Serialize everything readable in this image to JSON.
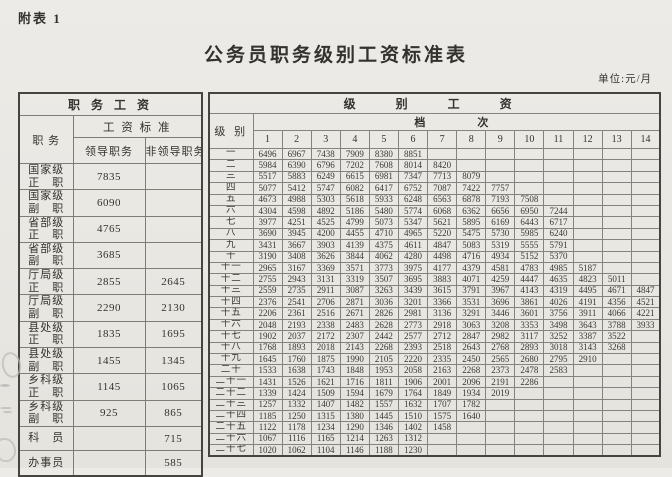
{
  "page": {
    "annex_label": "附表 1",
    "title": "公务员职务级别工资标准表",
    "unit_note": "单位:元/月"
  },
  "position_table": {
    "title": "职 务 工 资",
    "col_position": "职 务",
    "col_standard": "工 资 标 准",
    "col_leader": "领导职务",
    "col_nonleader": "非领导职务",
    "rows": [
      {
        "name": [
          "国家级",
          "正　职"
        ],
        "leader": "7835",
        "nonleader": ""
      },
      {
        "name": [
          "国家级",
          "副　职"
        ],
        "leader": "6090",
        "nonleader": ""
      },
      {
        "name": [
          "省部级",
          "正　职"
        ],
        "leader": "4765",
        "nonleader": ""
      },
      {
        "name": [
          "省部级",
          "副　职"
        ],
        "leader": "3685",
        "nonleader": ""
      },
      {
        "name": [
          "厅局级",
          "正　职"
        ],
        "leader": "2855",
        "nonleader": "2645"
      },
      {
        "name": [
          "厅局级",
          "副　职"
        ],
        "leader": "2290",
        "nonleader": "2130"
      },
      {
        "name": [
          "县处级",
          "正　职"
        ],
        "leader": "1835",
        "nonleader": "1695"
      },
      {
        "name": [
          "县处级",
          "副　职"
        ],
        "leader": "1455",
        "nonleader": "1345"
      },
      {
        "name": [
          "乡科级",
          "正　职"
        ],
        "leader": "1145",
        "nonleader": "1065"
      },
      {
        "name": [
          "乡科级",
          "副　职"
        ],
        "leader": "925",
        "nonleader": "865"
      },
      {
        "name": [
          "科　员"
        ],
        "leader": "",
        "nonleader": "715"
      },
      {
        "name": [
          "办事员"
        ],
        "leader": "",
        "nonleader": "585"
      }
    ]
  },
  "grade_table": {
    "title": "级　别　工　资",
    "col_grade": "级 别",
    "col_step": "档　　次",
    "steps": [
      "1",
      "2",
      "3",
      "4",
      "5",
      "6",
      "7",
      "8",
      "9",
      "10",
      "11",
      "12",
      "13",
      "14"
    ],
    "rows": [
      {
        "grade": "一",
        "values": [
          6496,
          6967,
          7438,
          7909,
          8380,
          8851
        ]
      },
      {
        "grade": "二",
        "values": [
          5984,
          6390,
          6796,
          7202,
          7608,
          8014,
          8420
        ]
      },
      {
        "grade": "三",
        "values": [
          5517,
          5883,
          6249,
          6615,
          6981,
          7347,
          7713,
          8079
        ]
      },
      {
        "grade": "四",
        "values": [
          5077,
          5412,
          5747,
          6082,
          6417,
          6752,
          7087,
          7422,
          7757
        ]
      },
      {
        "grade": "五",
        "values": [
          4673,
          4988,
          5303,
          5618,
          5933,
          6248,
          6563,
          6878,
          7193,
          7508
        ]
      },
      {
        "grade": "六",
        "values": [
          4304,
          4598,
          4892,
          5186,
          5480,
          5774,
          6068,
          6362,
          6656,
          6950,
          7244
        ]
      },
      {
        "grade": "七",
        "values": [
          3977,
          4251,
          4525,
          4799,
          5073,
          5347,
          5621,
          5895,
          6169,
          6443,
          6717
        ]
      },
      {
        "grade": "八",
        "values": [
          3690,
          3945,
          4200,
          4455,
          4710,
          4965,
          5220,
          5475,
          5730,
          5985,
          6240
        ]
      },
      {
        "grade": "九",
        "values": [
          3431,
          3667,
          3903,
          4139,
          4375,
          4611,
          4847,
          5083,
          5319,
          5555,
          5791
        ]
      },
      {
        "grade": "十",
        "values": [
          3190,
          3408,
          3626,
          3844,
          4062,
          4280,
          4498,
          4716,
          4934,
          5152,
          5370
        ]
      },
      {
        "grade": "十一",
        "values": [
          2965,
          3167,
          3369,
          3571,
          3773,
          3975,
          4177,
          4379,
          4581,
          4783,
          4985,
          5187
        ]
      },
      {
        "grade": "十二",
        "values": [
          2755,
          2943,
          3131,
          3319,
          3507,
          3695,
          3883,
          4071,
          4259,
          4447,
          4635,
          4823,
          5011
        ]
      },
      {
        "grade": "十三",
        "values": [
          2559,
          2735,
          2911,
          3087,
          3263,
          3439,
          3615,
          3791,
          3967,
          4143,
          4319,
          4495,
          4671,
          4847
        ]
      },
      {
        "grade": "十四",
        "values": [
          2376,
          2541,
          2706,
          2871,
          3036,
          3201,
          3366,
          3531,
          3696,
          3861,
          4026,
          4191,
          4356,
          4521
        ]
      },
      {
        "grade": "十五",
        "values": [
          2206,
          2361,
          2516,
          2671,
          2826,
          2981,
          3136,
          3291,
          3446,
          3601,
          3756,
          3911,
          4066,
          4221
        ]
      },
      {
        "grade": "十六",
        "values": [
          2048,
          2193,
          2338,
          2483,
          2628,
          2773,
          2918,
          3063,
          3208,
          3353,
          3498,
          3643,
          3788,
          3933
        ]
      },
      {
        "grade": "十七",
        "values": [
          1902,
          2037,
          2172,
          2307,
          2442,
          2577,
          2712,
          2847,
          2982,
          3117,
          3252,
          3387,
          3522
        ]
      },
      {
        "grade": "十八",
        "values": [
          1768,
          1893,
          2018,
          2143,
          2268,
          2393,
          2518,
          2643,
          2768,
          2893,
          3018,
          3143,
          3268
        ]
      },
      {
        "grade": "十九",
        "values": [
          1645,
          1760,
          1875,
          1990,
          2105,
          2220,
          2335,
          2450,
          2565,
          2680,
          2795,
          2910
        ]
      },
      {
        "grade": "二十",
        "values": [
          1533,
          1638,
          1743,
          1848,
          1953,
          2058,
          2163,
          2268,
          2373,
          2478,
          2583
        ]
      },
      {
        "grade": "二十一",
        "values": [
          1431,
          1526,
          1621,
          1716,
          1811,
          1906,
          2001,
          2096,
          2191,
          2286
        ]
      },
      {
        "grade": "二十二",
        "values": [
          1339,
          1424,
          1509,
          1594,
          1679,
          1764,
          1849,
          1934,
          2019
        ]
      },
      {
        "grade": "二十三",
        "values": [
          1257,
          1332,
          1407,
          1482,
          1557,
          1632,
          1707,
          1782
        ]
      },
      {
        "grade": "二十四",
        "values": [
          1185,
          1250,
          1315,
          1380,
          1445,
          1510,
          1575,
          1640
        ]
      },
      {
        "grade": "二十五",
        "values": [
          1122,
          1178,
          1234,
          1290,
          1346,
          1402,
          1458
        ]
      },
      {
        "grade": "二十六",
        "values": [
          1067,
          1116,
          1165,
          1214,
          1263,
          1312
        ]
      },
      {
        "grade": "二十七",
        "values": [
          1020,
          1062,
          1104,
          1146,
          1188,
          1230
        ]
      }
    ]
  }
}
